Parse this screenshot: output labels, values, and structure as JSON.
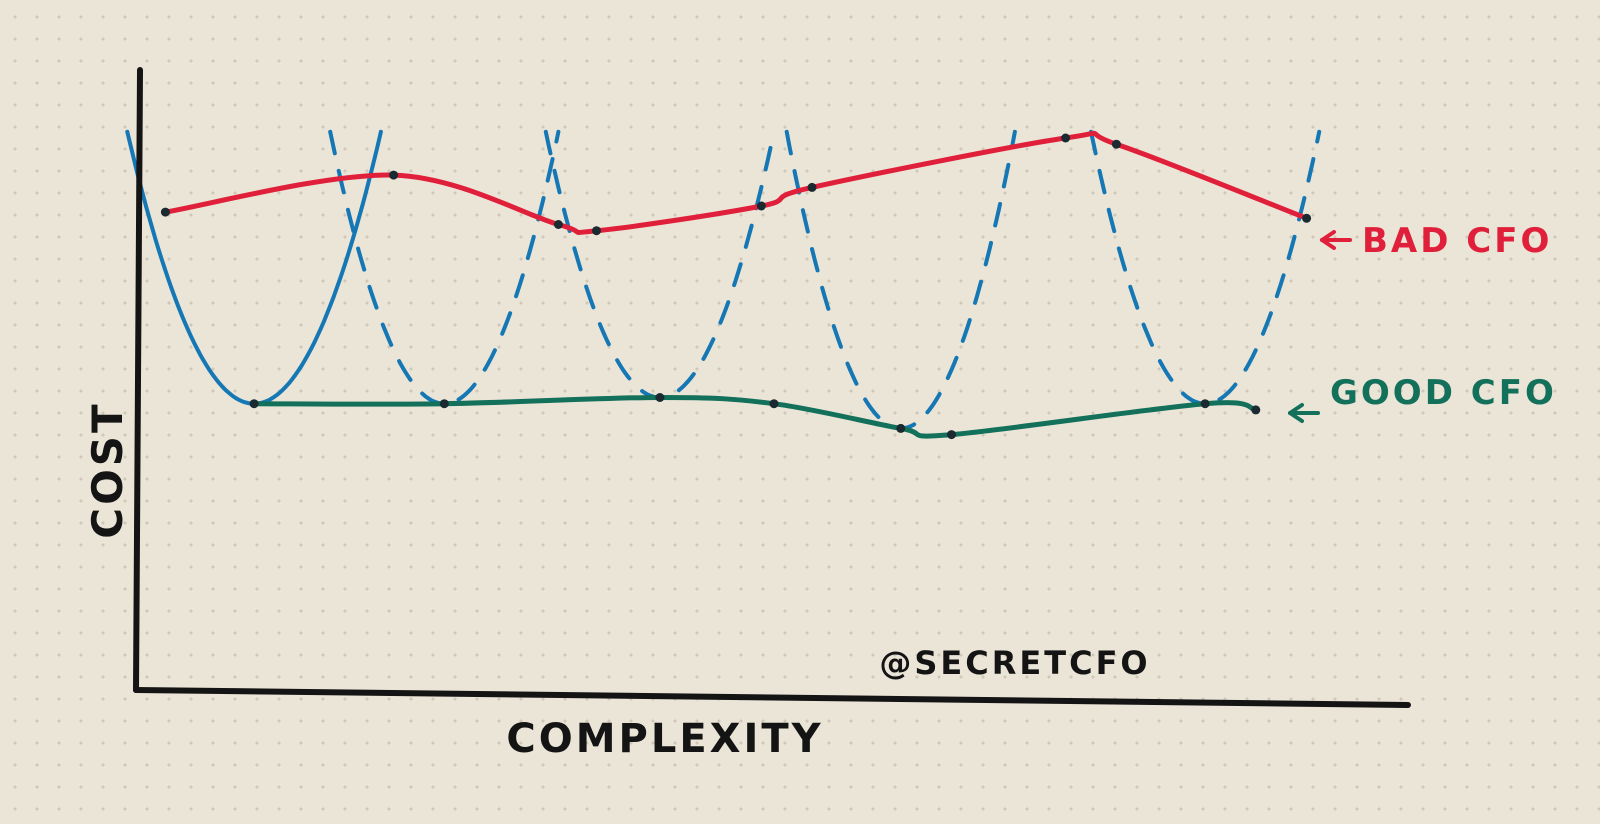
{
  "chart_data": {
    "type": "line",
    "title": "",
    "xlabel": "COMPLEXITY",
    "ylabel": "COST",
    "annotation": "@SECRETCFO",
    "xlim": [
      0,
      100
    ],
    "ylim": [
      0,
      100
    ],
    "grid": false,
    "legend": "right",
    "series": [
      {
        "name": "BAD CFO",
        "color": "#e0203a",
        "x": [
          2,
          20,
          33,
          36,
          49,
          53,
          73,
          77,
          92
        ],
        "y": [
          77,
          83,
          75,
          74,
          78,
          81,
          89,
          88,
          76
        ]
      },
      {
        "name": "GOOD CFO",
        "color": "#13705a",
        "x": [
          9,
          24,
          41,
          50,
          60,
          64,
          84,
          88
        ],
        "y": [
          46,
          46,
          47,
          46,
          42,
          41,
          46,
          45
        ]
      }
    ],
    "u_curves": {
      "color": "#1577b4",
      "curves": [
        {
          "x_min": 9,
          "y_min": 46,
          "style": "solid"
        },
        {
          "x_min": 24,
          "y_min": 46,
          "style": "dashed"
        },
        {
          "x_min": 41,
          "y_min": 47,
          "style": "dashed"
        },
        {
          "x_min": 60,
          "y_min": 42,
          "style": "dashed"
        },
        {
          "x_min": 84,
          "y_min": 46,
          "style": "dashed"
        }
      ]
    }
  }
}
